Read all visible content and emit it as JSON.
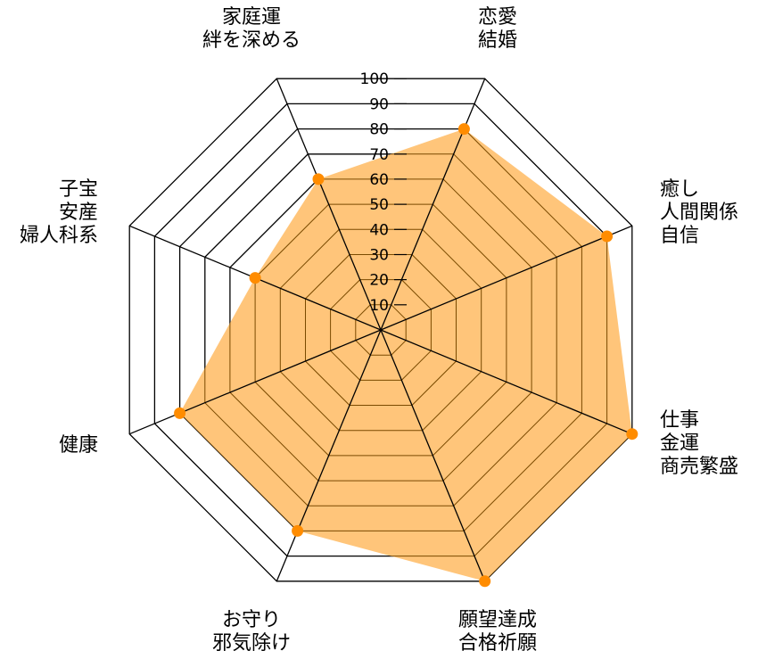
{
  "chart_data": {
    "type": "radar",
    "title": "",
    "categories": [
      [
        "恋愛",
        "結婚"
      ],
      [
        "癒し",
        "人間関係",
        "自信"
      ],
      [
        "仕事",
        "金運",
        "商売繁盛"
      ],
      [
        "願望達成",
        "合格祈願"
      ],
      [
        "お守り",
        "邪気除け"
      ],
      [
        "健康"
      ],
      [
        "子宝",
        "安産",
        "婦人科系"
      ],
      [
        "家庭運",
        "絆を深める"
      ]
    ],
    "values": [
      80,
      90,
      100,
      100,
      80,
      80,
      50,
      60
    ],
    "rlim": [
      0,
      100
    ],
    "ticks": [
      10,
      20,
      30,
      40,
      50,
      60,
      70,
      80,
      90,
      100
    ],
    "tick_labels": [
      "10",
      "20",
      "30",
      "40",
      "50",
      "60",
      "70",
      "80",
      "90",
      "100"
    ],
    "grid": true,
    "legend": "none",
    "colors": {
      "fill": "#ffc57a",
      "edge": "#7a4a00",
      "marker": "#ff8c00",
      "grid": "#000000"
    }
  }
}
